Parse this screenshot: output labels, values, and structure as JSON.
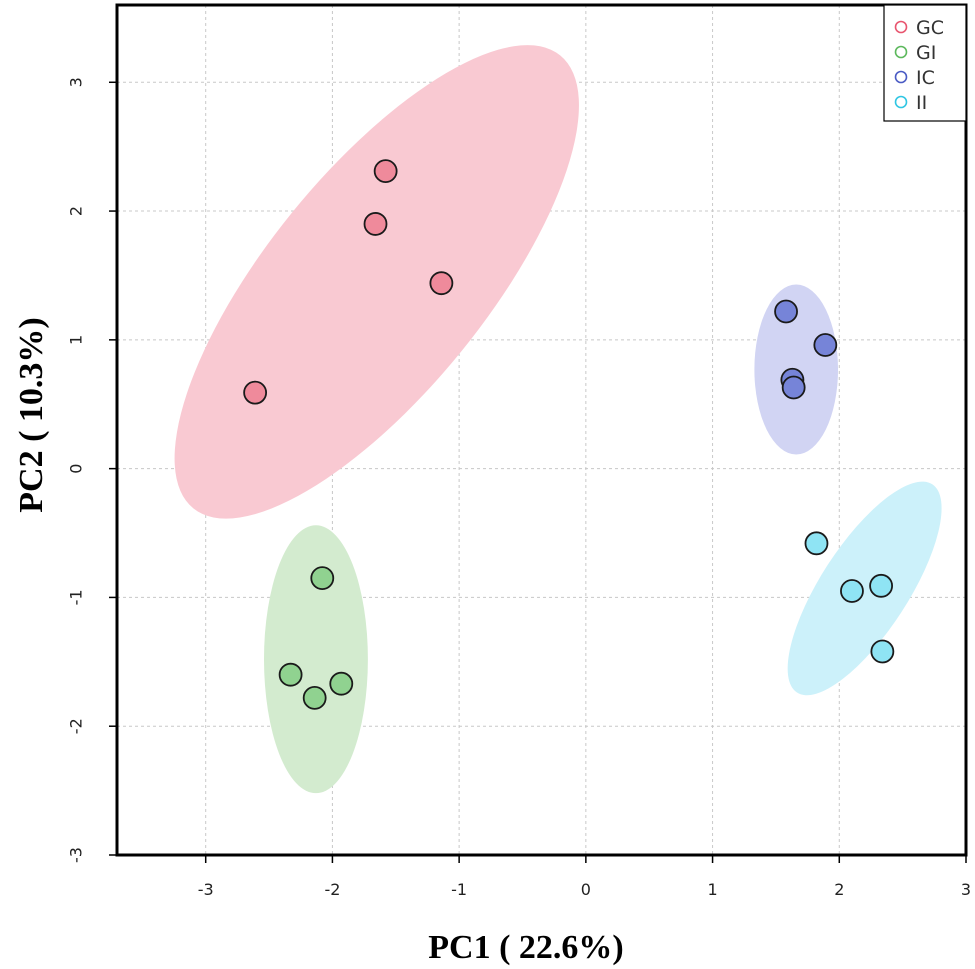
{
  "chart_data": {
    "type": "scatter",
    "title": "",
    "xlabel": "PC1 ( 22.6%)",
    "ylabel": "PC2 ( 10.3%)",
    "xlim": [
      -3.7,
      3
    ],
    "ylim": [
      -3,
      3.6
    ],
    "xticks": [
      -3,
      -2,
      -1,
      0,
      1,
      2,
      3
    ],
    "yticks": [
      -3,
      -2,
      -1,
      0,
      1,
      2,
      3
    ],
    "grid": true,
    "legend_position": "top-right",
    "series": [
      {
        "name": "GC",
        "color": "#e8556f",
        "fill": "#ef8a9b",
        "ellipse_color": "#f9c9d2",
        "points": [
          [
            -1.58,
            2.31
          ],
          [
            -1.66,
            1.9
          ],
          [
            -1.14,
            1.44
          ],
          [
            -2.61,
            0.59
          ]
        ],
        "ellipse": {
          "center": [
            -1.65,
            1.45
          ],
          "rx": 2.3,
          "ry": 0.85,
          "angle_deg": 51
        }
      },
      {
        "name": "GI",
        "color": "#5cb85c",
        "fill": "#90d290",
        "ellipse_color": "#d3ebcf",
        "points": [
          [
            -2.08,
            -0.85
          ],
          [
            -2.33,
            -1.6
          ],
          [
            -2.14,
            -1.78
          ],
          [
            -1.93,
            -1.67
          ]
        ],
        "ellipse": {
          "center": [
            -2.13,
            -1.48
          ],
          "rx": 0.41,
          "ry": 1.04,
          "angle_deg": 0
        }
      },
      {
        "name": "IC",
        "color": "#4a5bc4",
        "fill": "#7684d8",
        "ellipse_color": "#d1d4f3",
        "points": [
          [
            1.58,
            1.22
          ],
          [
            1.89,
            0.96
          ],
          [
            1.63,
            0.69
          ],
          [
            1.64,
            0.63
          ]
        ],
        "ellipse": {
          "center": [
            1.66,
            0.77
          ],
          "rx": 0.33,
          "ry": 0.66,
          "angle_deg": 0
        }
      },
      {
        "name": "II",
        "color": "#2fc6e3",
        "fill": "#8fe4f4",
        "ellipse_color": "#ccf1fa",
        "points": [
          [
            1.82,
            -0.58
          ],
          [
            2.1,
            -0.95
          ],
          [
            2.33,
            -0.91
          ],
          [
            2.34,
            -1.42
          ]
        ],
        "ellipse": {
          "center": [
            2.2,
            -0.93
          ],
          "rx": 0.98,
          "ry": 0.34,
          "angle_deg": 57
        }
      }
    ]
  }
}
